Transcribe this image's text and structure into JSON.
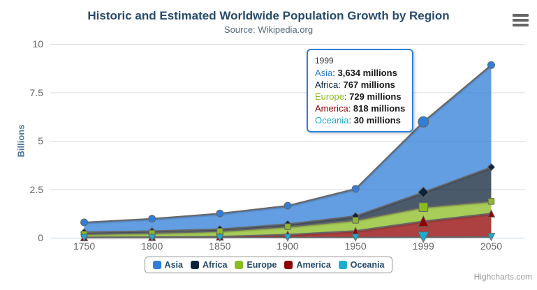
{
  "title": "Historic and Estimated Worldwide Population Growth by Region",
  "subtitle": "Source: Wikipedia.org",
  "credits": "Highcharts.com",
  "colors": {
    "title": "#274b6d",
    "subtitle": "#55687d",
    "axis_label": "#666666",
    "axis_title": "#4d759e",
    "grid": "#d8d8d8",
    "axis_line": "#c0d0e0",
    "series_line": "#666666",
    "legend_text": "#274b6d",
    "legend_border": "#909090",
    "tooltip_border": "#2f7ed8",
    "credits_text": "#999999"
  },
  "chart_data": {
    "type": "area",
    "stacking": "normal",
    "title": "Historic and Estimated Worldwide Population Growth by Region",
    "subtitle": "Source: Wikipedia.org",
    "xlabel": "",
    "ylabel": "Billions",
    "unit": "millions",
    "categories": [
      "1750",
      "1800",
      "1850",
      "1900",
      "1950",
      "1999",
      "2050"
    ],
    "y_ticks": [
      "0",
      "2.5",
      "5",
      "7.5",
      "10"
    ],
    "ylim": [
      0,
      10
    ],
    "grid": true,
    "legend_position": "bottom",
    "series": [
      {
        "name": "Asia",
        "color": "#2f7ed8",
        "marker": "circle",
        "values": [
          502,
          635,
          809,
          947,
          1402,
          3634,
          5268
        ]
      },
      {
        "name": "Africa",
        "color": "#0d233a",
        "marker": "diamond",
        "values": [
          106,
          107,
          111,
          133,
          221,
          767,
          1766
        ]
      },
      {
        "name": "Europe",
        "color": "#8bbc21",
        "marker": "square",
        "values": [
          163,
          203,
          276,
          408,
          547,
          729,
          628
        ]
      },
      {
        "name": "America",
        "color": "#910000",
        "marker": "triangle",
        "values": [
          18,
          31,
          54,
          156,
          339,
          818,
          1201
        ]
      },
      {
        "name": "Oceania",
        "color": "#1aadce",
        "marker": "triangle-down",
        "values": [
          2,
          2,
          2,
          6,
          13,
          30,
          46
        ]
      }
    ]
  },
  "tooltip": {
    "header": "1999",
    "hover_index": 5,
    "rows": [
      {
        "name": "Asia",
        "color": "#2f7ed8",
        "value": "3,634 millions"
      },
      {
        "name": "Africa",
        "color": "#0d233a",
        "value": "767 millions"
      },
      {
        "name": "Europe",
        "color": "#8bbc21",
        "value": "729 millions"
      },
      {
        "name": "America",
        "color": "#910000",
        "value": "818 millions"
      },
      {
        "name": "Oceania",
        "color": "#1aadce",
        "value": "30 millions"
      }
    ]
  }
}
